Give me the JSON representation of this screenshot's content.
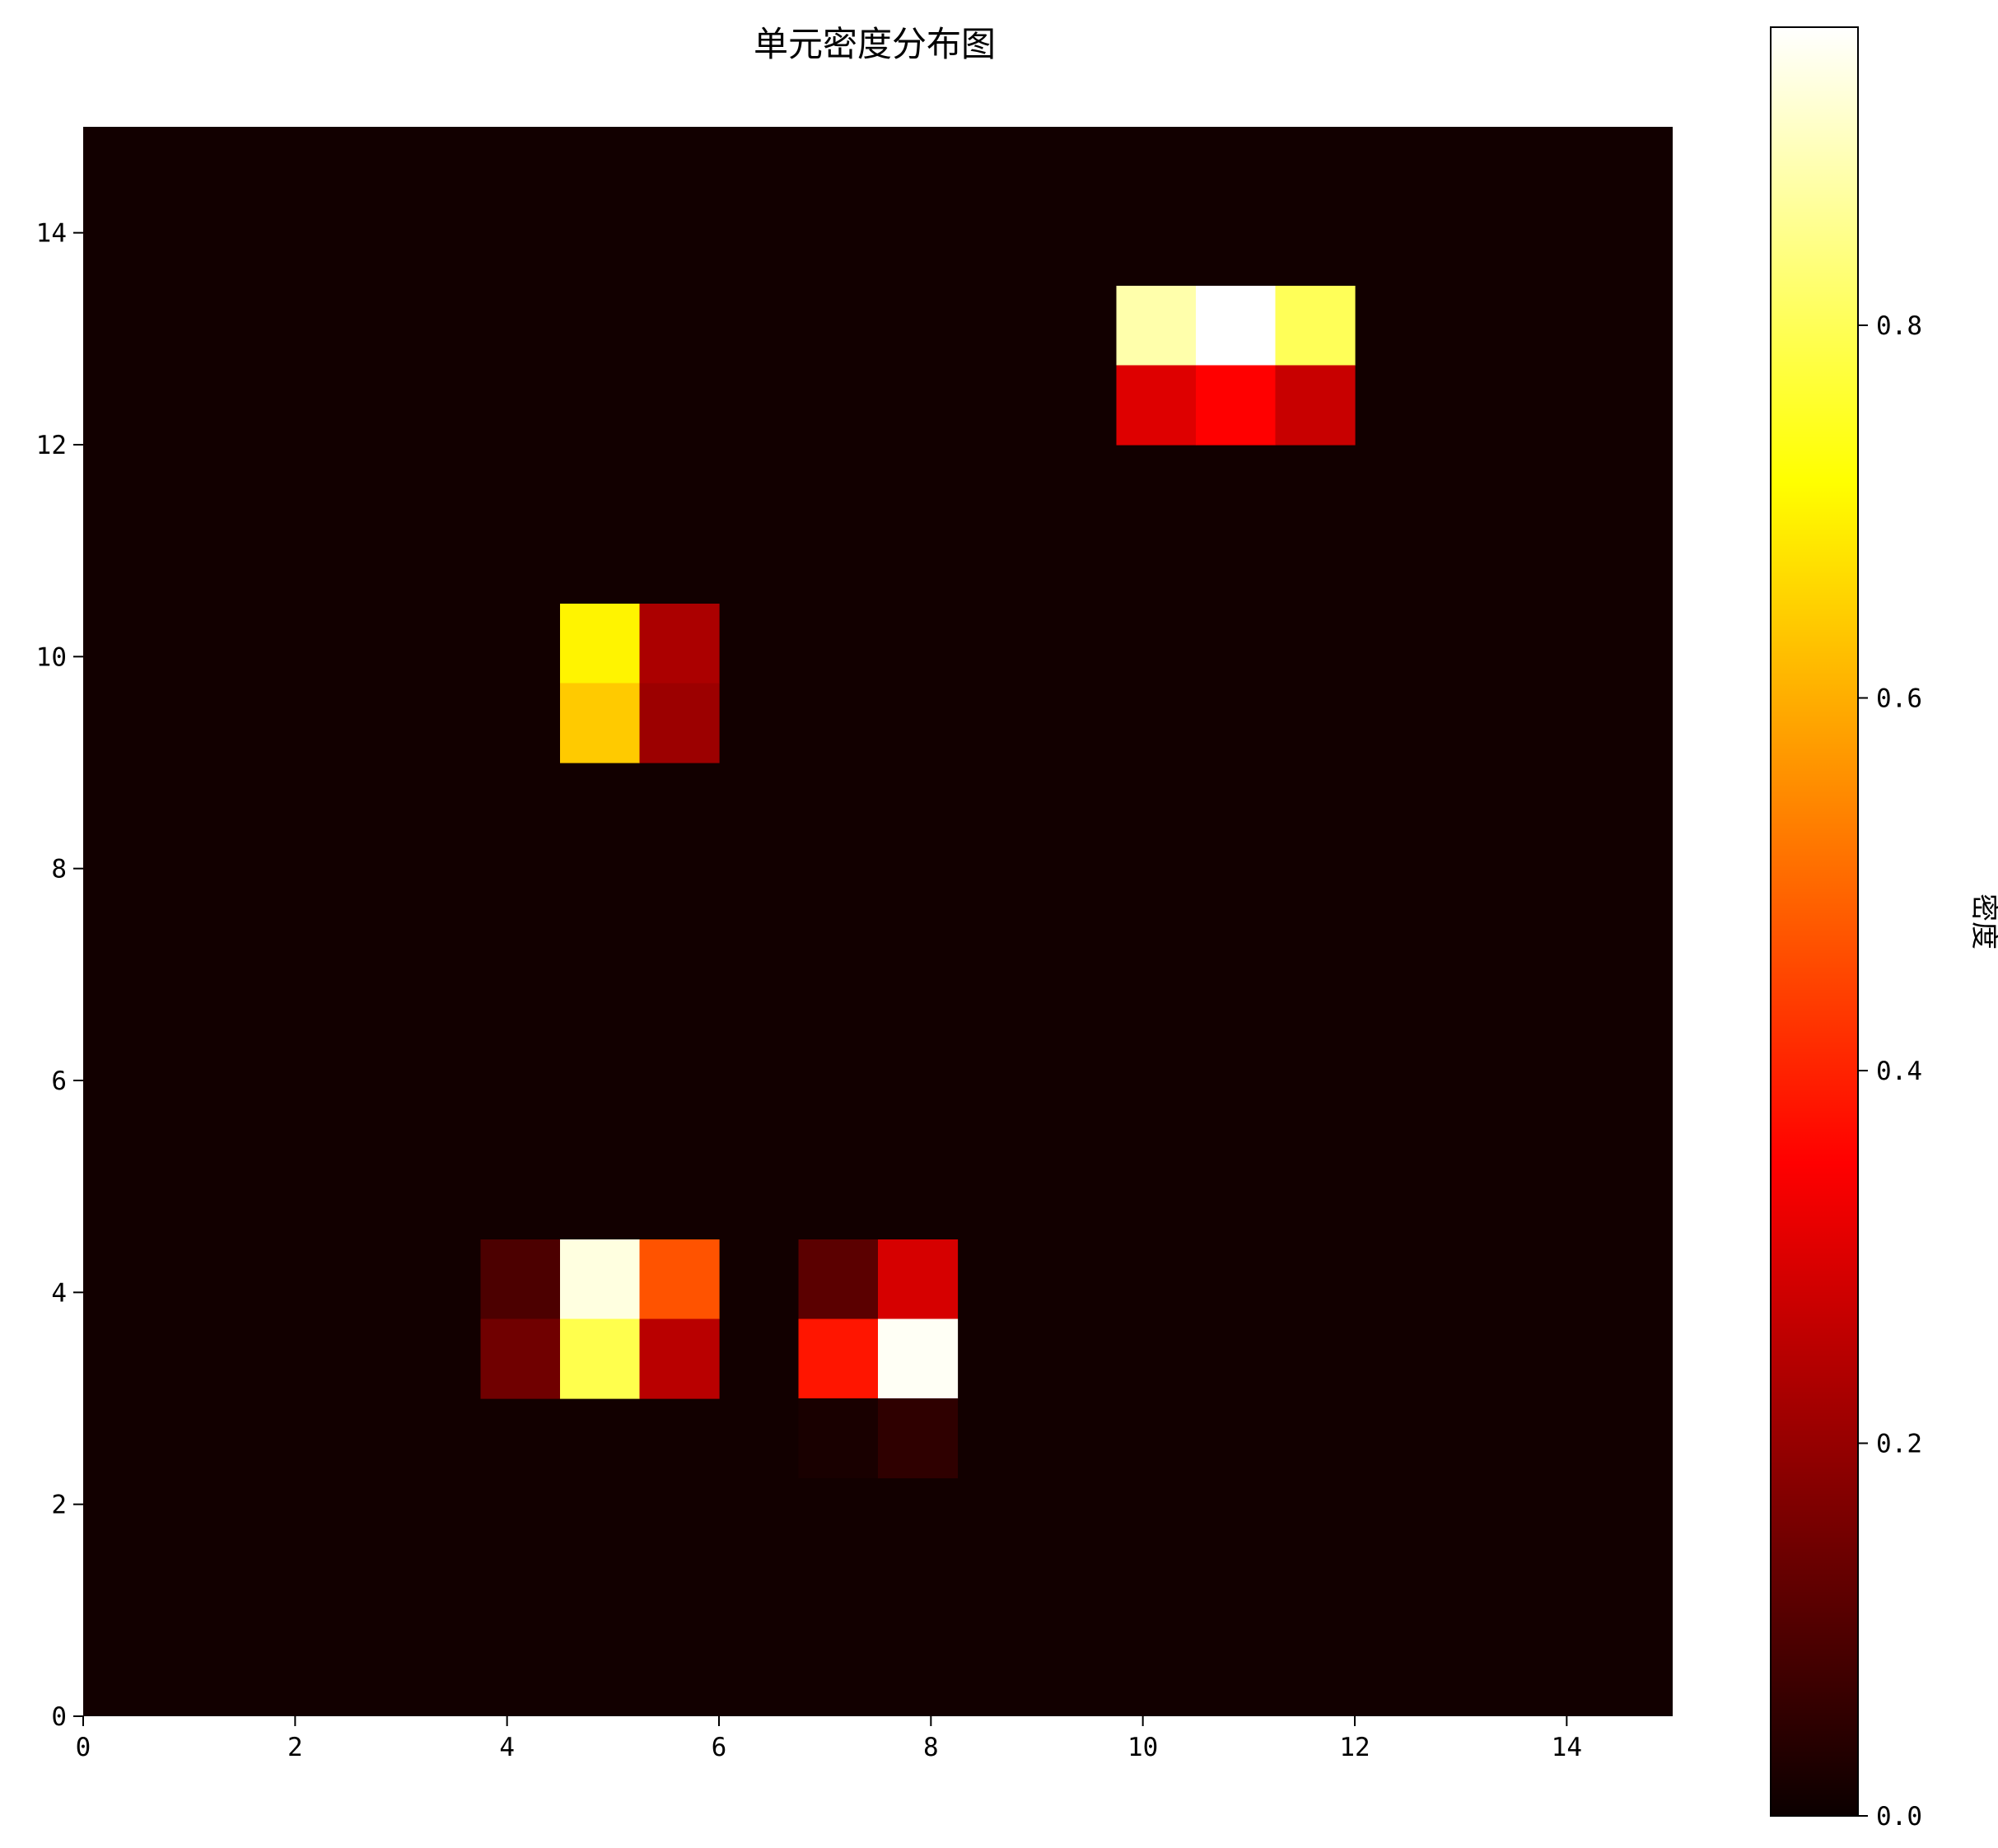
{
  "chart_data": {
    "type": "heatmap",
    "title": "单元密度分布图",
    "xlabel": "",
    "ylabel": "",
    "colorbar_label": "密度",
    "colormap": "hot",
    "xlim": [
      0,
      15
    ],
    "ylim": [
      0,
      15
    ],
    "xticks": [
      "0",
      "2",
      "4",
      "6",
      "8",
      "10",
      "12",
      "14"
    ],
    "yticks": [
      "0",
      "2",
      "4",
      "6",
      "8",
      "10",
      "12",
      "14"
    ],
    "colorbar_range": [
      0,
      0.96
    ],
    "colorbar_ticks": [
      "0.0",
      "0.2",
      "0.4",
      "0.6",
      "0.8"
    ],
    "background_value": 0.01,
    "cells": [
      {
        "x0": 9.75,
        "x1": 10.5,
        "y0": 12.75,
        "y1": 13.5,
        "value": 0.88
      },
      {
        "x0": 10.5,
        "x1": 11.25,
        "y0": 12.75,
        "y1": 13.5,
        "value": 0.96
      },
      {
        "x0": 11.25,
        "x1": 12.0,
        "y0": 12.75,
        "y1": 13.5,
        "value": 0.8
      },
      {
        "x0": 9.75,
        "x1": 10.5,
        "y0": 12.0,
        "y1": 12.75,
        "value": 0.29
      },
      {
        "x0": 10.5,
        "x1": 11.25,
        "y0": 12.0,
        "y1": 12.75,
        "value": 0.34
      },
      {
        "x0": 11.25,
        "x1": 12.0,
        "y0": 12.0,
        "y1": 12.75,
        "value": 0.26
      },
      {
        "x0": 4.5,
        "x1": 5.25,
        "y0": 9.75,
        "y1": 10.5,
        "value": 0.7
      },
      {
        "x0": 5.25,
        "x1": 6.0,
        "y0": 9.75,
        "y1": 10.5,
        "value": 0.22
      },
      {
        "x0": 4.5,
        "x1": 5.25,
        "y0": 9.0,
        "y1": 9.75,
        "value": 0.64
      },
      {
        "x0": 5.25,
        "x1": 6.0,
        "y0": 9.0,
        "y1": 9.75,
        "value": 0.2
      },
      {
        "x0": 3.75,
        "x1": 4.5,
        "y0": 3.75,
        "y1": 4.5,
        "value": 0.09
      },
      {
        "x0": 4.5,
        "x1": 5.25,
        "y0": 3.75,
        "y1": 4.5,
        "value": 0.93
      },
      {
        "x0": 5.25,
        "x1": 6.0,
        "y0": 3.75,
        "y1": 4.5,
        "value": 0.47
      },
      {
        "x0": 3.75,
        "x1": 4.5,
        "y0": 3.0,
        "y1": 3.75,
        "value": 0.14
      },
      {
        "x0": 4.5,
        "x1": 5.25,
        "y0": 3.0,
        "y1": 3.75,
        "value": 0.79
      },
      {
        "x0": 5.25,
        "x1": 6.0,
        "y0": 3.0,
        "y1": 3.75,
        "value": 0.24
      },
      {
        "x0": 6.75,
        "x1": 7.5,
        "y0": 3.75,
        "y1": 4.5,
        "value": 0.11
      },
      {
        "x0": 7.5,
        "x1": 8.25,
        "y0": 3.75,
        "y1": 4.5,
        "value": 0.28
      },
      {
        "x0": 6.75,
        "x1": 7.5,
        "y0": 3.0,
        "y1": 3.75,
        "value": 0.38
      },
      {
        "x0": 7.5,
        "x1": 8.25,
        "y0": 3.0,
        "y1": 3.75,
        "value": 0.95
      },
      {
        "x0": 6.75,
        "x1": 7.5,
        "y0": 2.25,
        "y1": 3.0,
        "value": 0.02
      },
      {
        "x0": 7.5,
        "x1": 8.25,
        "y0": 2.25,
        "y1": 3.0,
        "value": 0.05
      }
    ]
  }
}
